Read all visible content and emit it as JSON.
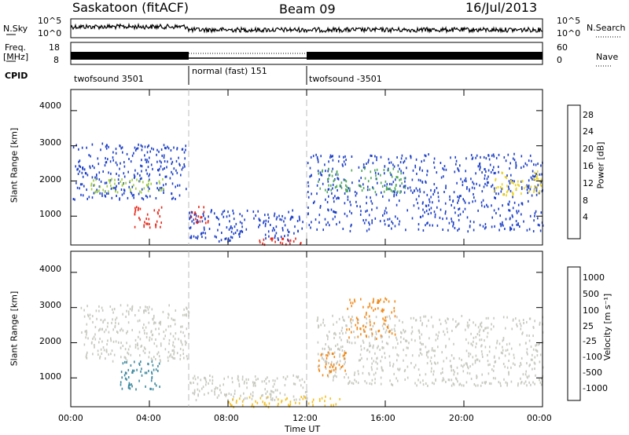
{
  "header": {
    "station": "Saskatoon (fitACF)",
    "beam": "Beam 09",
    "date": "16/Jul/2013"
  },
  "status_panels": {
    "nsky_label": "N.Sky",
    "nsky_ticks": [
      "10^5",
      "10^0"
    ],
    "nsearch_label": "N.Search",
    "nsearch_ticks": [
      "10^5",
      "10^0"
    ],
    "freq_label": "Freq.",
    "freq_unit": "[MHz]",
    "freq_ticks": [
      "18",
      "8"
    ],
    "nave_label": "Nave",
    "nave_ticks": [
      "60",
      "0"
    ],
    "cpid_label": "CPID",
    "cpid_segments": [
      {
        "label": "twofsound 3501",
        "start_h": 0,
        "end_h": 6
      },
      {
        "label": "normal (fast) 151",
        "start_h": 6,
        "end_h": 12
      },
      {
        "label": "twofsound -3501",
        "start_h": 12,
        "end_h": 24
      }
    ]
  },
  "chart_data": [
    {
      "type": "heatmap",
      "name": "power-panel",
      "ylabel": "Slant Range [km]",
      "yticks": [
        "4000",
        "3000",
        "2000",
        "1000"
      ],
      "ylim": [
        180,
        4600
      ],
      "xlim": [
        0,
        24
      ],
      "colorbar_label": "Power [dB]",
      "colorbar_ticks": [
        "28",
        "24",
        "20",
        "16",
        "12",
        "8",
        "4"
      ],
      "colorbar_colors": [
        "#1c1cd6",
        "#2a5fae",
        "#2e8a7a",
        "#4ea85a",
        "#9ccb3c",
        "#e8d21e",
        "#f5a020",
        "#f06a1a",
        "#e8281a"
      ],
      "blobs": [
        {
          "t0": 0.1,
          "t1": 6.0,
          "r0": 1500,
          "r1": 3100,
          "color": "#1c3fc8",
          "density": 0.35
        },
        {
          "t0": 1.0,
          "t1": 4.8,
          "r0": 1700,
          "r1": 2100,
          "color": "#9ccb3c",
          "density": 0.45
        },
        {
          "t0": 3.2,
          "t1": 4.6,
          "r0": 700,
          "r1": 1300,
          "color": "#e8281a",
          "density": 0.55
        },
        {
          "t0": 6.0,
          "t1": 7.0,
          "r0": 800,
          "r1": 1300,
          "color": "#e8281a",
          "density": 0.5
        },
        {
          "t0": 6.0,
          "t1": 11.8,
          "r0": 300,
          "r1": 1200,
          "color": "#1c3fc8",
          "density": 0.4
        },
        {
          "t0": 9.5,
          "t1": 11.8,
          "r0": 200,
          "r1": 400,
          "color": "#e8281a",
          "density": 0.6
        },
        {
          "t0": 12.0,
          "t1": 24.0,
          "r0": 600,
          "r1": 2800,
          "color": "#1c3fc8",
          "density": 0.3
        },
        {
          "t0": 12.5,
          "t1": 17.0,
          "r0": 1700,
          "r1": 2400,
          "color": "#4ea85a",
          "density": 0.35
        },
        {
          "t0": 21.5,
          "t1": 24.0,
          "r0": 1600,
          "r1": 2300,
          "color": "#e8d21e",
          "density": 0.4
        }
      ]
    },
    {
      "type": "heatmap",
      "name": "velocity-panel",
      "ylabel": "Slant Range [km]",
      "yticks": [
        "4000",
        "3000",
        "2000",
        "1000"
      ],
      "ylim": [
        180,
        4600
      ],
      "xlim": [
        0,
        24
      ],
      "colorbar_label": "Velocity [m s⁻¹]",
      "colorbar_ticks": [
        "1000",
        "500",
        "100",
        "25",
        "-25",
        "-100",
        "-500",
        "-1000"
      ],
      "colorbar_colors": [
        "#2a3fb8",
        "#3f8aa0",
        "#2e8a4a",
        "#66c23c",
        "#c8c8c0",
        "#f5c020",
        "#f08a1a",
        "#e85a14",
        "#e8281a"
      ],
      "blobs": [
        {
          "t0": 0.5,
          "t1": 6.0,
          "r0": 1500,
          "r1": 3100,
          "color": "#c8c8c0",
          "density": 0.4
        },
        {
          "t0": 2.5,
          "t1": 4.5,
          "r0": 700,
          "r1": 1500,
          "color": "#3f8aa0",
          "density": 0.5
        },
        {
          "t0": 6.0,
          "t1": 12.0,
          "r0": 400,
          "r1": 1100,
          "color": "#c8c8c0",
          "density": 0.45
        },
        {
          "t0": 8.0,
          "t1": 14.0,
          "r0": 200,
          "r1": 500,
          "color": "#f5c020",
          "density": 0.4
        },
        {
          "t0": 12.5,
          "t1": 24.0,
          "r0": 800,
          "r1": 2800,
          "color": "#c8c8c0",
          "density": 0.35
        },
        {
          "t0": 12.5,
          "t1": 14.0,
          "r0": 1100,
          "r1": 1800,
          "color": "#f08a1a",
          "density": 0.45
        },
        {
          "t0": 14.0,
          "t1": 16.5,
          "r0": 2100,
          "r1": 3300,
          "color": "#f08a1a",
          "density": 0.35
        }
      ]
    }
  ],
  "xaxis": {
    "ticks": [
      "00:00",
      "04:00",
      "08:00",
      "12:00",
      "16:00",
      "20:00",
      "00:00"
    ],
    "label": "Time UT"
  }
}
